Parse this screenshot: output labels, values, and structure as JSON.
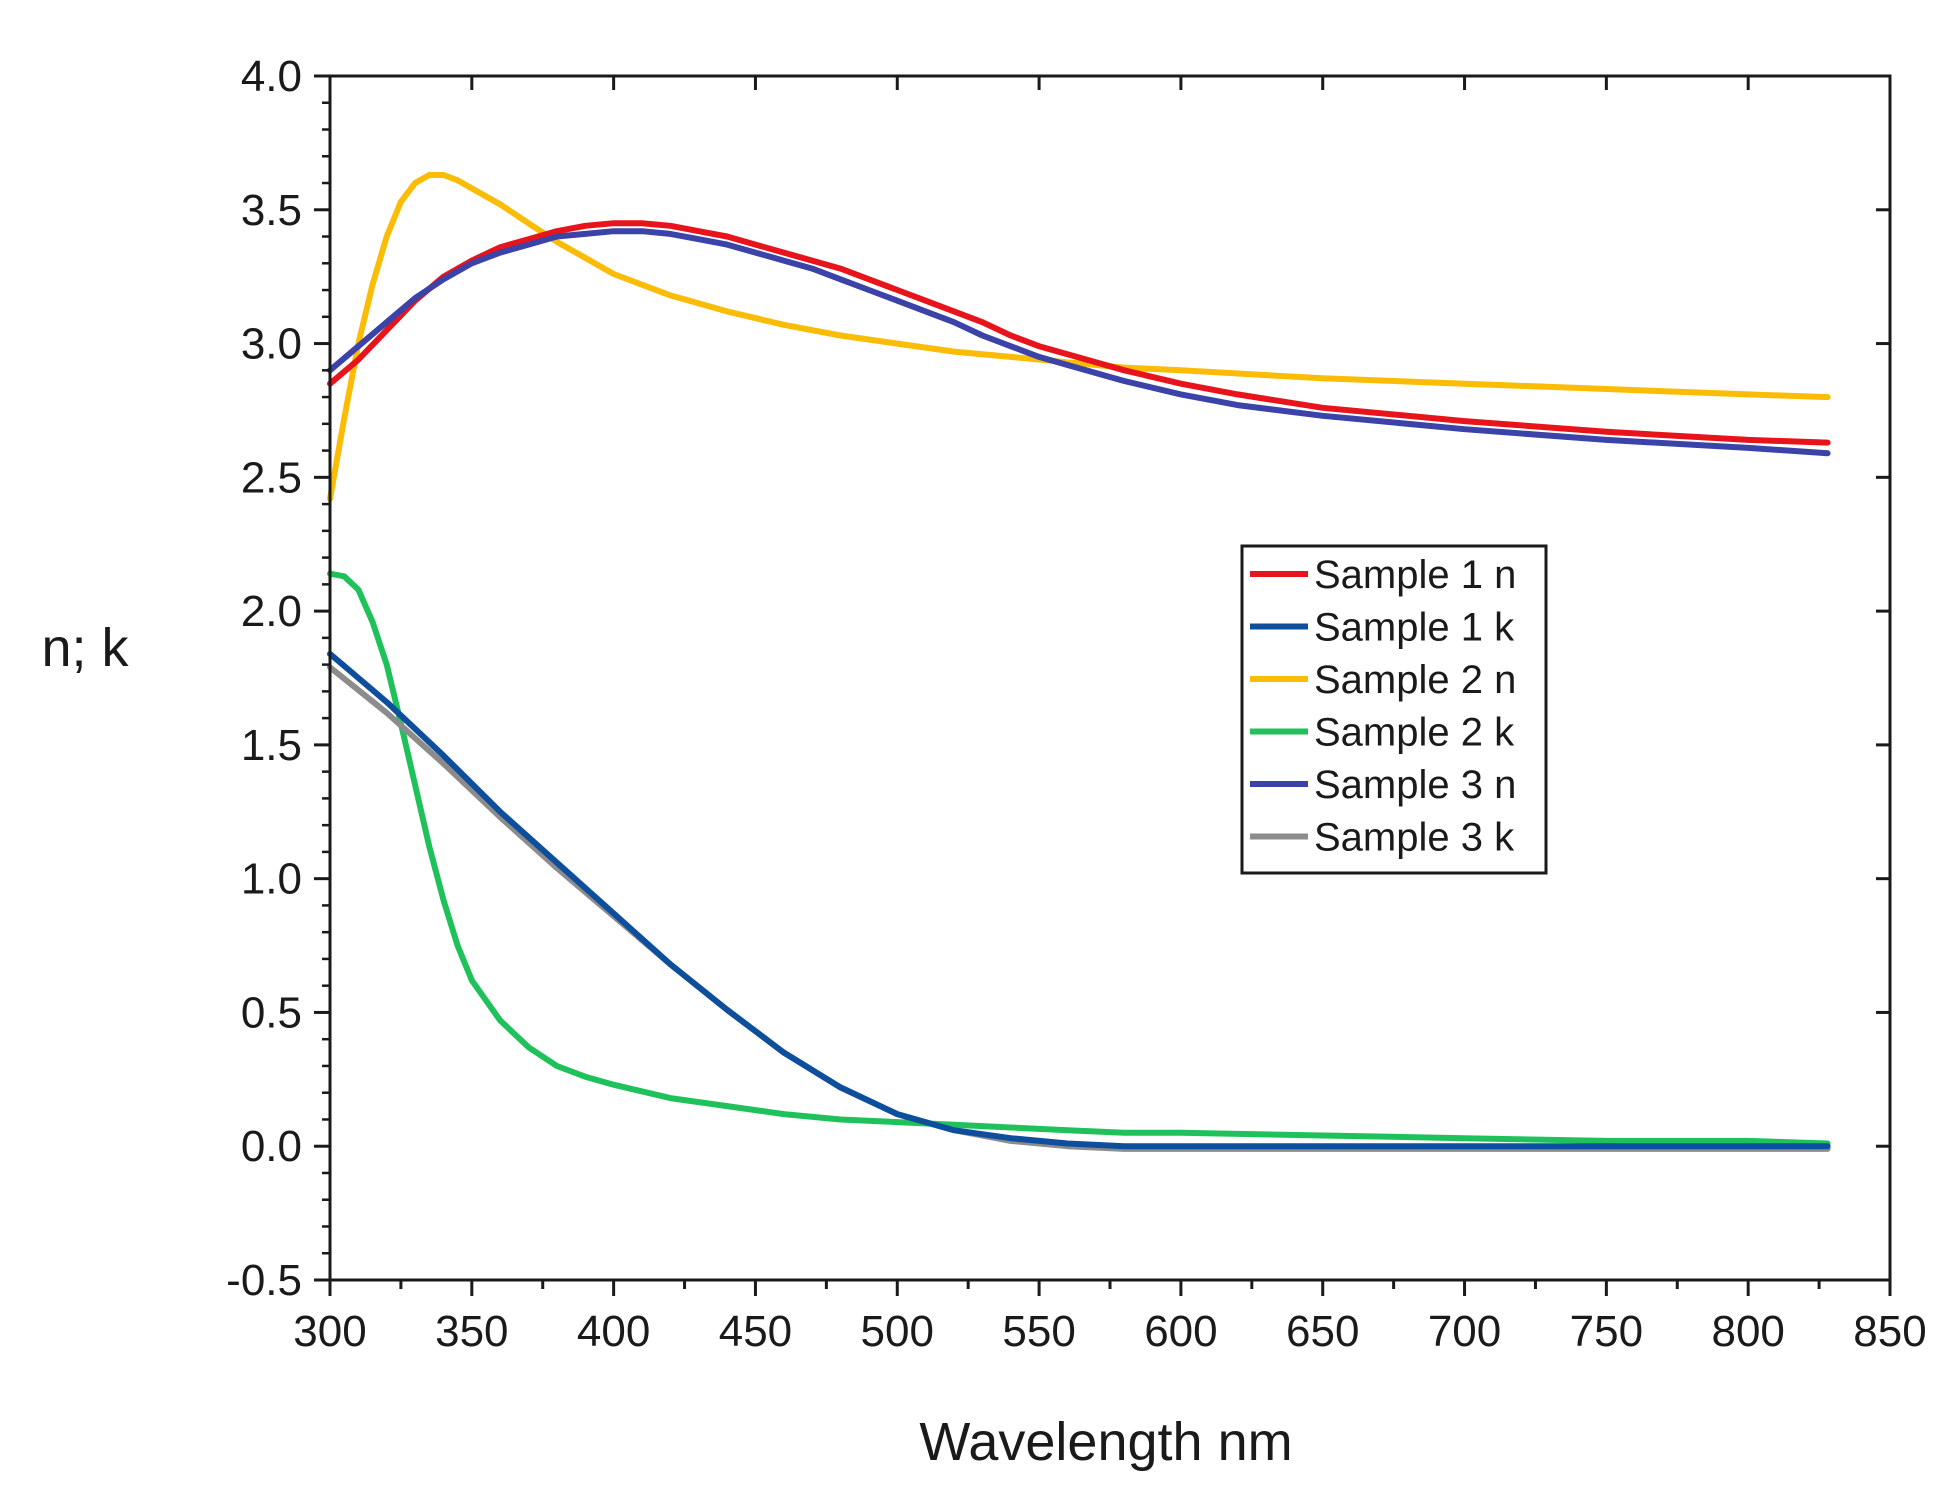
{
  "chart_data": {
    "type": "line",
    "title": "",
    "xlabel": "Wavelength nm",
    "ylabel": "n; k",
    "xlim": [
      300,
      850
    ],
    "ylim": [
      -0.5,
      4.0
    ],
    "x_ticks": [
      300,
      350,
      400,
      450,
      500,
      550,
      600,
      650,
      700,
      750,
      800,
      850
    ],
    "x_tick_labels": [
      "300",
      "350",
      "400",
      "450",
      "500",
      "550",
      "600",
      "650",
      "700",
      "750",
      "800",
      "850"
    ],
    "y_ticks": [
      -0.5,
      0.0,
      0.5,
      1.0,
      1.5,
      2.0,
      2.5,
      3.0,
      3.5,
      4.0
    ],
    "y_tick_labels": [
      "-0.5",
      "0.0",
      "0.5",
      "1.0",
      "1.5",
      "2.0",
      "2.5",
      "3.0",
      "3.5",
      "4.0"
    ],
    "grid": false,
    "legend_position": "center-right",
    "series": [
      {
        "name": "Sample 1 n",
        "color": "#e8141c",
        "x": [
          300,
          310,
          320,
          330,
          340,
          350,
          360,
          370,
          380,
          390,
          400,
          410,
          420,
          430,
          440,
          450,
          460,
          470,
          480,
          490,
          500,
          510,
          520,
          530,
          540,
          550,
          560,
          570,
          580,
          600,
          620,
          650,
          700,
          750,
          800,
          828
        ],
        "y": [
          2.85,
          2.94,
          3.05,
          3.16,
          3.25,
          3.31,
          3.36,
          3.39,
          3.42,
          3.44,
          3.45,
          3.45,
          3.44,
          3.42,
          3.4,
          3.37,
          3.34,
          3.31,
          3.28,
          3.24,
          3.2,
          3.16,
          3.12,
          3.08,
          3.03,
          2.99,
          2.96,
          2.93,
          2.9,
          2.85,
          2.81,
          2.76,
          2.71,
          2.67,
          2.64,
          2.63
        ]
      },
      {
        "name": "Sample 1 k",
        "color": "#0d4f9c",
        "x": [
          300,
          320,
          340,
          360,
          380,
          400,
          420,
          440,
          460,
          480,
          500,
          520,
          540,
          560,
          580,
          600,
          650,
          700,
          750,
          800,
          828
        ],
        "y": [
          1.84,
          1.66,
          1.46,
          1.25,
          1.06,
          0.87,
          0.68,
          0.51,
          0.35,
          0.22,
          0.12,
          0.06,
          0.03,
          0.01,
          0.0,
          0.0,
          0.0,
          0.0,
          0.0,
          0.0,
          0.0
        ]
      },
      {
        "name": "Sample 2 n",
        "color": "#fbbc06",
        "x": [
          300,
          305,
          310,
          315,
          320,
          325,
          330,
          335,
          340,
          345,
          350,
          360,
          370,
          380,
          390,
          400,
          420,
          440,
          460,
          480,
          500,
          520,
          540,
          560,
          580,
          600,
          650,
          700,
          750,
          800,
          828
        ],
        "y": [
          2.42,
          2.72,
          3.0,
          3.22,
          3.4,
          3.53,
          3.6,
          3.63,
          3.63,
          3.61,
          3.58,
          3.52,
          3.45,
          3.38,
          3.32,
          3.26,
          3.18,
          3.12,
          3.07,
          3.03,
          3.0,
          2.97,
          2.95,
          2.93,
          2.91,
          2.9,
          2.87,
          2.85,
          2.83,
          2.81,
          2.8
        ]
      },
      {
        "name": "Sample 2 k",
        "color": "#1fc25a",
        "x": [
          300,
          305,
          310,
          315,
          320,
          325,
          330,
          335,
          340,
          345,
          350,
          360,
          370,
          380,
          390,
          400,
          420,
          440,
          460,
          480,
          500,
          520,
          540,
          560,
          580,
          600,
          650,
          700,
          750,
          800,
          828
        ],
        "y": [
          2.14,
          2.13,
          2.08,
          1.96,
          1.8,
          1.58,
          1.35,
          1.12,
          0.92,
          0.75,
          0.62,
          0.47,
          0.37,
          0.3,
          0.26,
          0.23,
          0.18,
          0.15,
          0.12,
          0.1,
          0.09,
          0.08,
          0.07,
          0.06,
          0.05,
          0.05,
          0.04,
          0.03,
          0.02,
          0.02,
          0.01
        ]
      },
      {
        "name": "Sample 3 n",
        "color": "#3b42a8",
        "x": [
          300,
          310,
          320,
          330,
          340,
          350,
          360,
          370,
          380,
          390,
          400,
          410,
          420,
          430,
          440,
          450,
          460,
          470,
          480,
          490,
          500,
          510,
          520,
          530,
          540,
          550,
          560,
          570,
          580,
          600,
          620,
          650,
          700,
          750,
          800,
          828
        ],
        "y": [
          2.9,
          2.99,
          3.08,
          3.17,
          3.24,
          3.3,
          3.34,
          3.37,
          3.4,
          3.41,
          3.42,
          3.42,
          3.41,
          3.39,
          3.37,
          3.34,
          3.31,
          3.28,
          3.24,
          3.2,
          3.16,
          3.12,
          3.08,
          3.03,
          2.99,
          2.95,
          2.92,
          2.89,
          2.86,
          2.81,
          2.77,
          2.73,
          2.68,
          2.64,
          2.61,
          2.59
        ]
      },
      {
        "name": "Sample 3 k",
        "color": "#8c8c8c",
        "x": [
          300,
          320,
          340,
          360,
          380,
          400,
          420,
          440,
          460,
          480,
          500,
          520,
          540,
          560,
          580,
          600,
          650,
          700,
          750,
          800,
          828
        ],
        "y": [
          1.79,
          1.62,
          1.43,
          1.23,
          1.04,
          0.86,
          0.68,
          0.51,
          0.35,
          0.22,
          0.12,
          0.06,
          0.02,
          0.0,
          -0.01,
          -0.01,
          -0.01,
          -0.01,
          -0.01,
          -0.01,
          -0.01
        ]
      }
    ]
  }
}
